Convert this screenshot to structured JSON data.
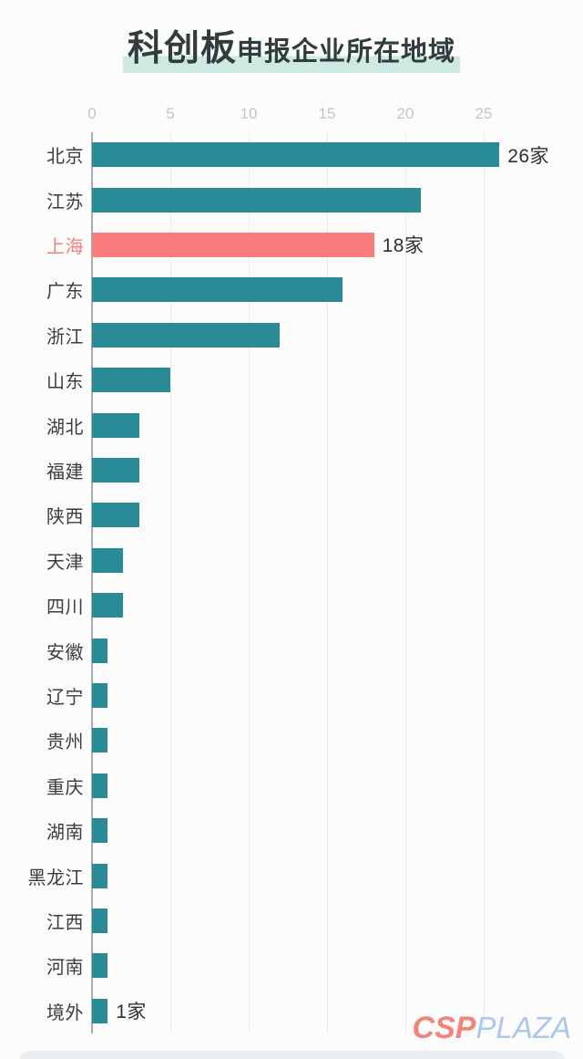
{
  "page": {
    "background": "#fcfcfc"
  },
  "title": {
    "emphasis": "科创板",
    "rest": "申报企业所在地域",
    "text_color": "#313d3d",
    "highlight_color": "#cde9e2"
  },
  "chart_data": {
    "type": "bar",
    "orientation": "horizontal",
    "title": "科创板申报企业所在地域",
    "categories": [
      "北京",
      "江苏",
      "上海",
      "广东",
      "浙江",
      "山东",
      "湖北",
      "福建",
      "陕西",
      "天津",
      "四川",
      "安徽",
      "辽宁",
      "贵州",
      "重庆",
      "湖南",
      "黑龙江",
      "江西",
      "河南",
      "境外"
    ],
    "values": [
      26,
      21,
      18,
      16,
      12,
      5,
      3,
      3,
      3,
      2,
      2,
      1,
      1,
      1,
      1,
      1,
      1,
      1,
      1,
      1
    ],
    "annotations": [
      "26家",
      null,
      "18家",
      null,
      null,
      null,
      null,
      null,
      null,
      null,
      null,
      null,
      null,
      null,
      null,
      null,
      null,
      null,
      null,
      "1家"
    ],
    "unit_suffix": "家",
    "highlight_index": 2,
    "bar_color": "#2a8b97",
    "highlight_bar_color": "#fa7d7d",
    "highlight_label_color": "#f5807f",
    "label_color": "#3d3d3d",
    "tick_color": "#c5c5c5",
    "xticks": [
      0,
      5,
      10,
      15,
      20,
      25
    ],
    "xlim": [
      0,
      27.5
    ],
    "grid": "vertical",
    "legend": "none"
  },
  "watermark": {
    "part1": "CSP",
    "part2": "PLAZA",
    "color1": "#f2847c",
    "color2": "#acc7e9"
  }
}
